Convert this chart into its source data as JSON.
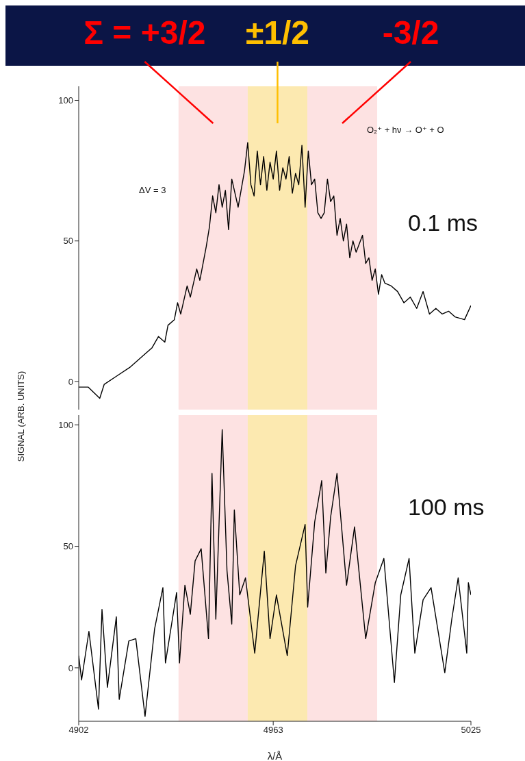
{
  "chart_data": [
    {
      "type": "line",
      "ylabel": "SIGNAL (ARB. UNITS)",
      "xlim": [
        4902,
        5025
      ],
      "xticks": [
        4902,
        4963,
        5025
      ],
      "ylim": [
        -10,
        105
      ],
      "yticks": [
        0,
        50,
        100
      ],
      "tick_labels": "y",
      "marker": "none",
      "line_style": "solid",
      "annotations": [
        "ΔV = 3",
        "O₂⁺ + hν → O⁺ + O",
        "0.1 ms"
      ],
      "bands": [
        {
          "axis": "x",
          "from": 4933.3,
          "to": 4955,
          "label": "Σ = +3/2",
          "color": "#fde2e2"
        },
        {
          "axis": "x",
          "from": 4955,
          "to": 4973.7,
          "label": "±1/2",
          "color": "#fce9b0"
        },
        {
          "axis": "x",
          "from": 4973.7,
          "to": 4995.6,
          "label": "-3/2",
          "color": "#fde2e2"
        }
      ],
      "series": [
        {
          "color": "#000000",
          "x": [
            4902,
            4905,
            4908.6,
            4910,
            4914,
            4918,
            4922,
            4925,
            4927,
            4929,
            4930,
            4932,
            4933,
            4934,
            4936,
            4937,
            4939,
            4940,
            4942,
            4943,
            4944,
            4945,
            4946,
            4947,
            4948,
            4949,
            4950,
            4952,
            4954,
            4955,
            4956,
            4957,
            4958,
            4959,
            4960,
            4961,
            4962,
            4963,
            4964,
            4965,
            4966,
            4967,
            4968,
            4969,
            4970,
            4971,
            4972,
            4973,
            4974,
            4975,
            4976,
            4977,
            4978,
            4979,
            4980,
            4981,
            4982,
            4983,
            4984,
            4985,
            4986,
            4987,
            4988,
            4989,
            4991,
            4992,
            4993,
            4994,
            4995,
            4996,
            4997,
            4998,
            5000,
            5002,
            5004,
            5006,
            5008,
            5010,
            5012,
            5014,
            5016,
            5018,
            5020,
            5023,
            5025
          ],
          "values": [
            -2,
            -2,
            -6,
            -1,
            2,
            5,
            9,
            12,
            16,
            14,
            20,
            22,
            28,
            24,
            34,
            30,
            40,
            36,
            48,
            55,
            66,
            60,
            70,
            62,
            68,
            54,
            72,
            62,
            75,
            85,
            70,
            66,
            82,
            70,
            80,
            68,
            78,
            72,
            82,
            68,
            76,
            72,
            80,
            67,
            74,
            70,
            84,
            62,
            82,
            70,
            72,
            60,
            58,
            60,
            72,
            64,
            66,
            52,
            58,
            50,
            56,
            44,
            50,
            46,
            52,
            42,
            44,
            36,
            40,
            31,
            38,
            35,
            34,
            32,
            28,
            30,
            26,
            32,
            24,
            26,
            24,
            25,
            23,
            22,
            27
          ]
        }
      ]
    },
    {
      "type": "line",
      "xlabel": "λ/Å",
      "xlim": [
        4902,
        5025
      ],
      "xticks": [
        4902,
        4963,
        5025
      ],
      "ylim": [
        -22,
        104
      ],
      "yticks": [
        0,
        50,
        100
      ],
      "marker": "none",
      "line_style": "solid",
      "annotations": [
        "100 ms"
      ],
      "bands": [
        {
          "axis": "x",
          "from": 4933.3,
          "to": 4955,
          "color": "#fde2e2"
        },
        {
          "axis": "x",
          "from": 4955,
          "to": 4973.7,
          "color": "#fce9b0"
        },
        {
          "axis": "x",
          "from": 4973.7,
          "to": 4995.6,
          "color": "#fde2e2"
        }
      ],
      "series": [
        {
          "color": "#000000",
          "x": [
            4902,
            4902.9,
            4905.2,
            4908.2,
            4909.3,
            4911,
            4913.8,
            4914.7,
            4917.7,
            4919.9,
            4922.8,
            4925.8,
            4928.4,
            4929.2,
            4932.7,
            4933.6,
            4935.3,
            4937,
            4938.5,
            4940.4,
            4942.7,
            4943.8,
            4945,
            4947,
            4948.5,
            4950,
            4950.8,
            4952.5,
            4954.3,
            4957.2,
            4960.2,
            4962,
            4964,
            4967.4,
            4970,
            4973,
            4973.8,
            4976,
            4978.2,
            4979.5,
            4981,
            4983,
            4986,
            4988.5,
            4992,
            4995,
            4997.7,
            5001,
            5003,
            5005.6,
            5007.4,
            5010,
            5012.5,
            5016.8,
            5019,
            5021,
            5023.7,
            5024.2,
            5025
          ],
          "values": [
            5,
            -5,
            15,
            -17,
            24,
            -8,
            21,
            -13,
            11,
            12,
            -20,
            16,
            33,
            2,
            31,
            2,
            34,
            22,
            44,
            49,
            12,
            80,
            20,
            98,
            40,
            18,
            65,
            30,
            37,
            6,
            48,
            12,
            30,
            5,
            42,
            59,
            25,
            60,
            77,
            39,
            62,
            80,
            34,
            58,
            12,
            35,
            45,
            -6,
            30,
            45,
            6,
            28,
            33,
            -2,
            20,
            37,
            6,
            35,
            30
          ]
        }
      ]
    }
  ]
}
